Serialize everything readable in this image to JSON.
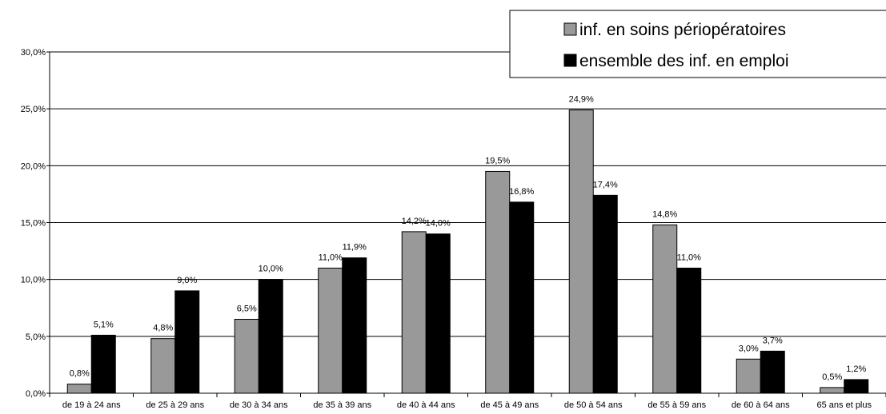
{
  "chart_data": {
    "type": "bar",
    "categories": [
      "de 19 à 24 ans",
      "de 25 à 29 ans",
      "de 30 à 34 ans",
      "de 35 à 39 ans",
      "de 40 à 44 ans",
      "de 45 à 49 ans",
      "de 50 à 54 ans",
      "de 55 à 59 ans",
      "de 60 à 64 ans",
      "65 ans et plus"
    ],
    "series": [
      {
        "name": "inf. en soins périopératoires",
        "color": "#999999",
        "values": [
          0.8,
          4.8,
          6.5,
          11.0,
          14.2,
          19.5,
          24.9,
          14.8,
          3.0,
          0.5
        ],
        "labels": [
          "0,8%",
          "4,8%",
          "6,5%",
          "11,0%",
          "14,2%",
          "19,5%",
          "24,9%",
          "14,8%",
          "3,0%",
          "0,5%"
        ]
      },
      {
        "name": "ensemble des inf. en emploi",
        "color": "#000000",
        "values": [
          5.1,
          9.0,
          10.0,
          11.9,
          14.0,
          16.8,
          17.4,
          11.0,
          3.7,
          1.2
        ],
        "labels": [
          "5,1%",
          "9,0%",
          "10,0%",
          "11,9%",
          "14,0%",
          "16,8%",
          "17,4%",
          "11,0%",
          "3,7%",
          "1,2%"
        ]
      }
    ],
    "ylim": [
      0,
      30
    ],
    "yticks": [
      "0,0%",
      "5,0%",
      "10,0%",
      "15,0%",
      "20,0%",
      "25,0%",
      "30,0%"
    ],
    "grid": true,
    "legend_position": "top-right",
    "title": "",
    "xlabel": "",
    "ylabel": ""
  }
}
